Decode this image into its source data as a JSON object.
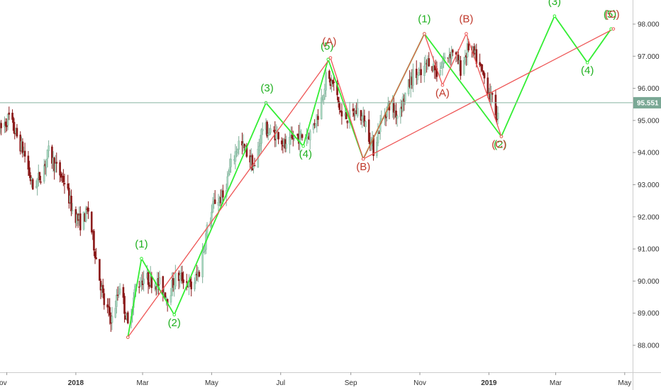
{
  "chart_data": {
    "type": "candlestick",
    "xlim": [
      "2017-10-26",
      "2019-05-08"
    ],
    "ylim": [
      87.16,
      98.75
    ],
    "y_ticks": [
      88.0,
      89.0,
      90.0,
      91.0,
      92.0,
      93.0,
      94.0,
      95.0,
      96.0,
      97.0,
      98.0
    ],
    "y_tick_labels": [
      "88.000",
      "89.000",
      "90.000",
      "91.000",
      "92.000",
      "93.000",
      "94.000",
      "95.000",
      "96.000",
      "97.000",
      "98.000"
    ],
    "x_ticks": [
      {
        "date": "2017-11-01",
        "label": "ov",
        "bold": false
      },
      {
        "date": "2018-01-01",
        "label": "2018",
        "bold": true
      },
      {
        "date": "2018-03-01",
        "label": "Mar",
        "bold": false
      },
      {
        "date": "2018-05-01",
        "label": "May",
        "bold": false
      },
      {
        "date": "2018-07-01",
        "label": "Jul",
        "bold": false
      },
      {
        "date": "2018-09-01",
        "label": "Sep",
        "bold": false
      },
      {
        "date": "2018-11-01",
        "label": "Nov",
        "bold": false
      },
      {
        "date": "2019-01-01",
        "label": "2019",
        "bold": true
      },
      {
        "date": "2019-03-01",
        "label": "Mar",
        "bold": false
      },
      {
        "date": "2019-05-01",
        "label": "May",
        "bold": false
      }
    ],
    "current_price": {
      "value": 95.551,
      "label": "95.551"
    },
    "price_path": [
      [
        "2017-10-26",
        94.7
      ],
      [
        "2017-11-03",
        95.1
      ],
      [
        "2017-11-10",
        94.5
      ],
      [
        "2017-11-17",
        93.9
      ],
      [
        "2017-11-24",
        92.9
      ],
      [
        "2017-12-01",
        93.3
      ],
      [
        "2017-12-08",
        94.0
      ],
      [
        "2017-12-15",
        93.5
      ],
      [
        "2017-12-22",
        93.1
      ],
      [
        "2017-12-29",
        92.2
      ],
      [
        "2018-01-05",
        91.8
      ],
      [
        "2018-01-12",
        92.2
      ],
      [
        "2018-01-19",
        90.7
      ],
      [
        "2018-01-26",
        89.3
      ],
      [
        "2018-02-02",
        88.8
      ],
      [
        "2018-02-09",
        89.9
      ],
      [
        "2018-02-16",
        88.6
      ],
      [
        "2018-02-23",
        89.8
      ],
      [
        "2018-03-02",
        90.1
      ],
      [
        "2018-03-09",
        90.0
      ],
      [
        "2018-03-16",
        89.9
      ],
      [
        "2018-03-23",
        89.5
      ],
      [
        "2018-03-30",
        90.1
      ],
      [
        "2018-04-06",
        90.1
      ],
      [
        "2018-04-13",
        89.8
      ],
      [
        "2018-04-20",
        90.3
      ],
      [
        "2018-04-27",
        91.6
      ],
      [
        "2018-05-04",
        92.5
      ],
      [
        "2018-05-11",
        92.6
      ],
      [
        "2018-05-18",
        93.6
      ],
      [
        "2018-05-25",
        94.3
      ],
      [
        "2018-06-01",
        94.0
      ],
      [
        "2018-06-08",
        93.5
      ],
      [
        "2018-06-15",
        94.8
      ],
      [
        "2018-06-22",
        94.6
      ],
      [
        "2018-06-29",
        94.6
      ],
      [
        "2018-07-06",
        94.1
      ],
      [
        "2018-07-13",
        94.5
      ],
      [
        "2018-07-20",
        94.5
      ],
      [
        "2018-07-27",
        94.6
      ],
      [
        "2018-08-03",
        95.2
      ],
      [
        "2018-08-10",
        96.3
      ],
      [
        "2018-08-17",
        96.1
      ],
      [
        "2018-08-24",
        95.1
      ],
      [
        "2018-08-31",
        95.1
      ],
      [
        "2018-09-07",
        95.3
      ],
      [
        "2018-09-14",
        94.9
      ],
      [
        "2018-09-21",
        94.1
      ],
      [
        "2018-09-28",
        95.0
      ],
      [
        "2018-10-05",
        95.5
      ],
      [
        "2018-10-12",
        95.2
      ],
      [
        "2018-10-19",
        95.8
      ],
      [
        "2018-10-26",
        96.4
      ],
      [
        "2018-11-02",
        96.4
      ],
      [
        "2018-11-09",
        96.9
      ],
      [
        "2018-11-16",
        96.5
      ],
      [
        "2018-11-23",
        96.9
      ],
      [
        "2018-11-30",
        97.2
      ],
      [
        "2018-12-07",
        96.6
      ],
      [
        "2018-12-14",
        97.3
      ],
      [
        "2018-12-21",
        96.9
      ],
      [
        "2018-12-28",
        96.3
      ],
      [
        "2019-01-04",
        95.6
      ],
      [
        "2019-01-09",
        95.1
      ]
    ],
    "wave_paths": [
      {
        "color": "#33ee33",
        "points": [
          [
            "2018-02-16",
            88.25
          ],
          [
            "2018-02-28",
            90.7
          ],
          [
            "2018-03-29",
            88.95
          ],
          [
            "2018-06-18",
            95.55
          ],
          [
            "2018-07-21",
            94.2
          ],
          [
            "2018-08-12",
            96.9
          ],
          [
            "2018-09-12",
            93.8
          ],
          [
            "2018-11-05",
            97.7
          ],
          [
            "2019-01-12",
            94.5
          ],
          [
            "2019-02-28",
            98.25
          ],
          [
            "2019-03-29",
            96.8
          ],
          [
            "2019-04-19",
            97.85
          ]
        ]
      },
      {
        "color": "#ee5555",
        "points": [
          [
            "2018-02-16",
            88.25
          ],
          [
            "2018-08-14",
            96.95
          ],
          [
            "2018-09-12",
            93.8
          ],
          [
            "2018-11-05",
            97.7
          ],
          [
            "2018-11-21",
            96.1
          ],
          [
            "2018-12-12",
            97.7
          ],
          [
            "2019-01-12",
            94.5
          ]
        ]
      },
      {
        "color": "#ee5555",
        "points": [
          [
            "2018-09-12",
            93.8
          ],
          [
            "2019-04-21",
            97.85
          ]
        ]
      }
    ],
    "wave_labels": [
      {
        "text": "(1)",
        "color": "#1fb01f",
        "date": "2018-02-28",
        "price": 91.05
      },
      {
        "text": "(2)",
        "color": "#1fb01f",
        "date": "2018-03-29",
        "price": 88.6
      },
      {
        "text": "(3)",
        "color": "#1fb01f",
        "date": "2018-06-19",
        "price": 95.9
      },
      {
        "text": "(4)",
        "color": "#1fb01f",
        "date": "2018-07-23",
        "price": 93.85
      },
      {
        "text": "(5)",
        "color": "#1fb01f",
        "date": "2018-08-11",
        "price": 97.2
      },
      {
        "text": "(A)",
        "color": "#c0392b",
        "date": "2018-08-13",
        "price": 97.35
      },
      {
        "text": "(B)",
        "color": "#c0392b",
        "date": "2018-09-12",
        "price": 93.45
      },
      {
        "text": "(1)",
        "color": "#1fb01f",
        "date": "2018-11-05",
        "price": 98.05
      },
      {
        "text": "(A)",
        "color": "#c0392b",
        "date": "2018-11-21",
        "price": 95.75
      },
      {
        "text": "(B)",
        "color": "#c0392b",
        "date": "2018-12-12",
        "price": 98.05
      },
      {
        "text": "(2)",
        "color": "#1fb01f",
        "date": "2019-01-11",
        "price": 94.15
      },
      {
        "text": "(C)",
        "color": "#c0392b",
        "date": "2019-01-10",
        "price": 94.15
      },
      {
        "text": "(3)",
        "color": "#1fb01f",
        "date": "2019-02-28",
        "price": 98.6
      },
      {
        "text": "(4)",
        "color": "#1fb01f",
        "date": "2019-03-29",
        "price": 96.45
      },
      {
        "text": "(5)",
        "color": "#1fb01f",
        "date": "2019-04-18",
        "price": 98.2
      },
      {
        "text": "(C)",
        "color": "#c0392b",
        "date": "2019-04-20",
        "price": 98.2
      }
    ],
    "colors": {
      "up": "#a8d8c0",
      "down": "#8b1a1a",
      "price_line": "#86b5a1",
      "axis": "#cccccc",
      "price_tag": "#7aa895"
    },
    "grid": false
  }
}
